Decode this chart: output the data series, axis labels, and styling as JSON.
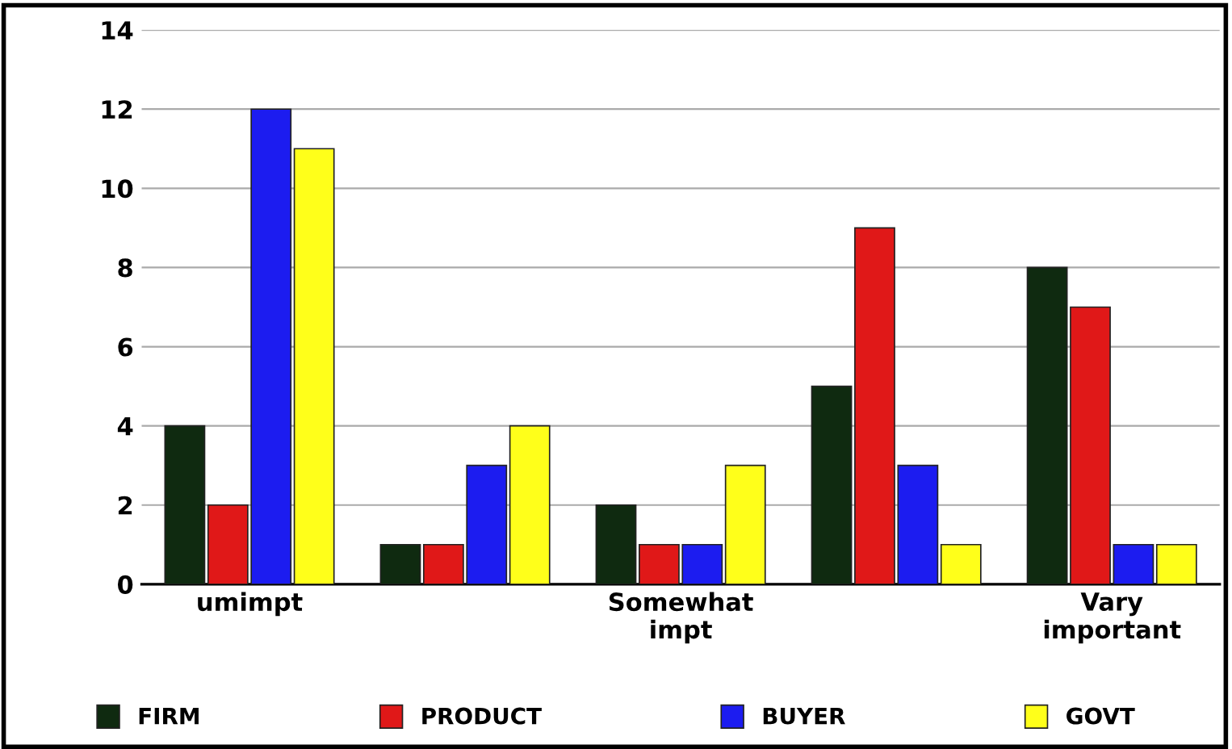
{
  "chart_data": {
    "type": "bar",
    "categories": [
      "umimpt",
      null,
      "Somewhat\nimpt",
      null,
      "Vary\nimportant"
    ],
    "series": [
      {
        "name": "FIRM",
        "color": "#0f2a10",
        "values": [
          4,
          1,
          2,
          5,
          8
        ]
      },
      {
        "name": "PRODUCT",
        "color": "#e01818",
        "values": [
          2,
          1,
          1,
          9,
          7
        ]
      },
      {
        "name": "BUYER",
        "color": "#1c1cf0",
        "values": [
          12,
          3,
          1,
          3,
          1
        ]
      },
      {
        "name": "GOVT",
        "color": "#ffff1a",
        "values": [
          11,
          4,
          3,
          1,
          1
        ]
      }
    ],
    "ylim": [
      0,
      14
    ],
    "yticks": [
      0,
      2,
      4,
      6,
      8,
      10,
      12,
      14
    ],
    "grid": "y",
    "legend": "bottom"
  }
}
